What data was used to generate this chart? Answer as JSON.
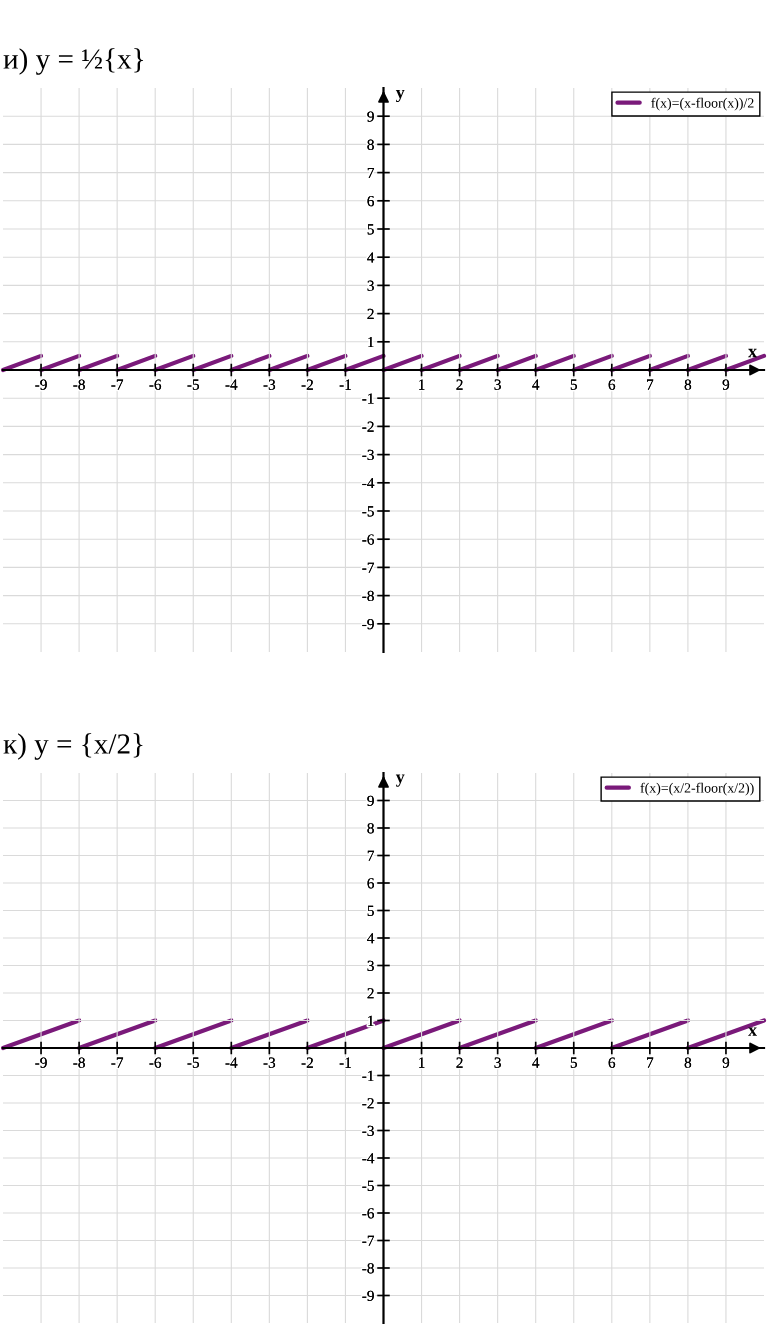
{
  "chart_data": [
    {
      "type": "line",
      "title": "и) y = ½{x}",
      "xlabel": "x",
      "ylabel": "y",
      "xlim": [
        -10,
        10
      ],
      "ylim": [
        -10,
        10
      ],
      "xticks": [
        -9,
        -8,
        -7,
        -6,
        -5,
        -4,
        -3,
        -2,
        -1,
        1,
        2,
        3,
        4,
        5,
        6,
        7,
        8,
        9
      ],
      "yticks": [
        -9,
        -8,
        -7,
        -6,
        -5,
        -4,
        -3,
        -2,
        -1,
        1,
        2,
        3,
        4,
        5,
        6,
        7,
        8,
        9
      ],
      "grid": true,
      "legend": "top right",
      "line_style": "solid",
      "series": [
        {
          "name": "f(x)=(x-floor(x))/2",
          "color": "#7a1a7a",
          "x": [
            -10,
            -9
          ],
          "values": [
            0,
            0.5
          ]
        },
        {
          "color": "#7a1a7a",
          "x": [
            -9,
            -8
          ],
          "values": [
            0,
            0.5
          ]
        },
        {
          "color": "#7a1a7a",
          "x": [
            -8,
            -7
          ],
          "values": [
            0,
            0.5
          ]
        },
        {
          "color": "#7a1a7a",
          "x": [
            -7,
            -6
          ],
          "values": [
            0,
            0.5
          ]
        },
        {
          "color": "#7a1a7a",
          "x": [
            -6,
            -5
          ],
          "values": [
            0,
            0.5
          ]
        },
        {
          "color": "#7a1a7a",
          "x": [
            -5,
            -4
          ],
          "values": [
            0,
            0.5
          ]
        },
        {
          "color": "#7a1a7a",
          "x": [
            -4,
            -3
          ],
          "values": [
            0,
            0.5
          ]
        },
        {
          "color": "#7a1a7a",
          "x": [
            -3,
            -2
          ],
          "values": [
            0,
            0.5
          ]
        },
        {
          "color": "#7a1a7a",
          "x": [
            -2,
            -1
          ],
          "values": [
            0,
            0.5
          ]
        },
        {
          "color": "#7a1a7a",
          "x": [
            -1,
            0
          ],
          "values": [
            0,
            0.5
          ]
        },
        {
          "color": "#7a1a7a",
          "x": [
            0,
            1
          ],
          "values": [
            0,
            0.5
          ]
        },
        {
          "color": "#7a1a7a",
          "x": [
            1,
            2
          ],
          "values": [
            0,
            0.5
          ]
        },
        {
          "color": "#7a1a7a",
          "x": [
            2,
            3
          ],
          "values": [
            0,
            0.5
          ]
        },
        {
          "color": "#7a1a7a",
          "x": [
            3,
            4
          ],
          "values": [
            0,
            0.5
          ]
        },
        {
          "color": "#7a1a7a",
          "x": [
            4,
            5
          ],
          "values": [
            0,
            0.5
          ]
        },
        {
          "color": "#7a1a7a",
          "x": [
            5,
            6
          ],
          "values": [
            0,
            0.5
          ]
        },
        {
          "color": "#7a1a7a",
          "x": [
            6,
            7
          ],
          "values": [
            0,
            0.5
          ]
        },
        {
          "color": "#7a1a7a",
          "x": [
            7,
            8
          ],
          "values": [
            0,
            0.5
          ]
        },
        {
          "color": "#7a1a7a",
          "x": [
            8,
            9
          ],
          "values": [
            0,
            0.5
          ]
        },
        {
          "color": "#7a1a7a",
          "x": [
            9,
            10
          ],
          "values": [
            0,
            0.5
          ]
        }
      ]
    },
    {
      "type": "line",
      "title": "к) y = {x/2}",
      "xlabel": "x",
      "ylabel": "y",
      "xlim": [
        -10,
        10
      ],
      "ylim": [
        -10,
        10
      ],
      "xticks": [
        -9,
        -8,
        -7,
        -6,
        -5,
        -4,
        -3,
        -2,
        -1,
        1,
        2,
        3,
        4,
        5,
        6,
        7,
        8,
        9
      ],
      "yticks": [
        -9,
        -8,
        -7,
        -6,
        -5,
        -4,
        -3,
        -2,
        -1,
        1,
        2,
        3,
        4,
        5,
        6,
        7,
        8,
        9
      ],
      "grid": true,
      "legend": "top right",
      "line_style": "solid",
      "series": [
        {
          "name": "f(x)=(x/2-floor(x/2))",
          "color": "#7a1a7a",
          "x": [
            -10,
            -8
          ],
          "values": [
            0,
            1
          ]
        },
        {
          "color": "#7a1a7a",
          "x": [
            -8,
            -6
          ],
          "values": [
            0,
            1
          ]
        },
        {
          "color": "#7a1a7a",
          "x": [
            -6,
            -4
          ],
          "values": [
            0,
            1
          ]
        },
        {
          "color": "#7a1a7a",
          "x": [
            -4,
            -2
          ],
          "values": [
            0,
            1
          ]
        },
        {
          "color": "#7a1a7a",
          "x": [
            -2,
            0
          ],
          "values": [
            0,
            1
          ]
        },
        {
          "color": "#7a1a7a",
          "x": [
            0,
            2
          ],
          "values": [
            0,
            1
          ]
        },
        {
          "color": "#7a1a7a",
          "x": [
            2,
            4
          ],
          "values": [
            0,
            1
          ]
        },
        {
          "color": "#7a1a7a",
          "x": [
            4,
            6
          ],
          "values": [
            0,
            1
          ]
        },
        {
          "color": "#7a1a7a",
          "x": [
            6,
            8
          ],
          "values": [
            0,
            1
          ]
        },
        {
          "color": "#7a1a7a",
          "x": [
            8,
            10
          ],
          "values": [
            0,
            1
          ]
        }
      ]
    }
  ]
}
